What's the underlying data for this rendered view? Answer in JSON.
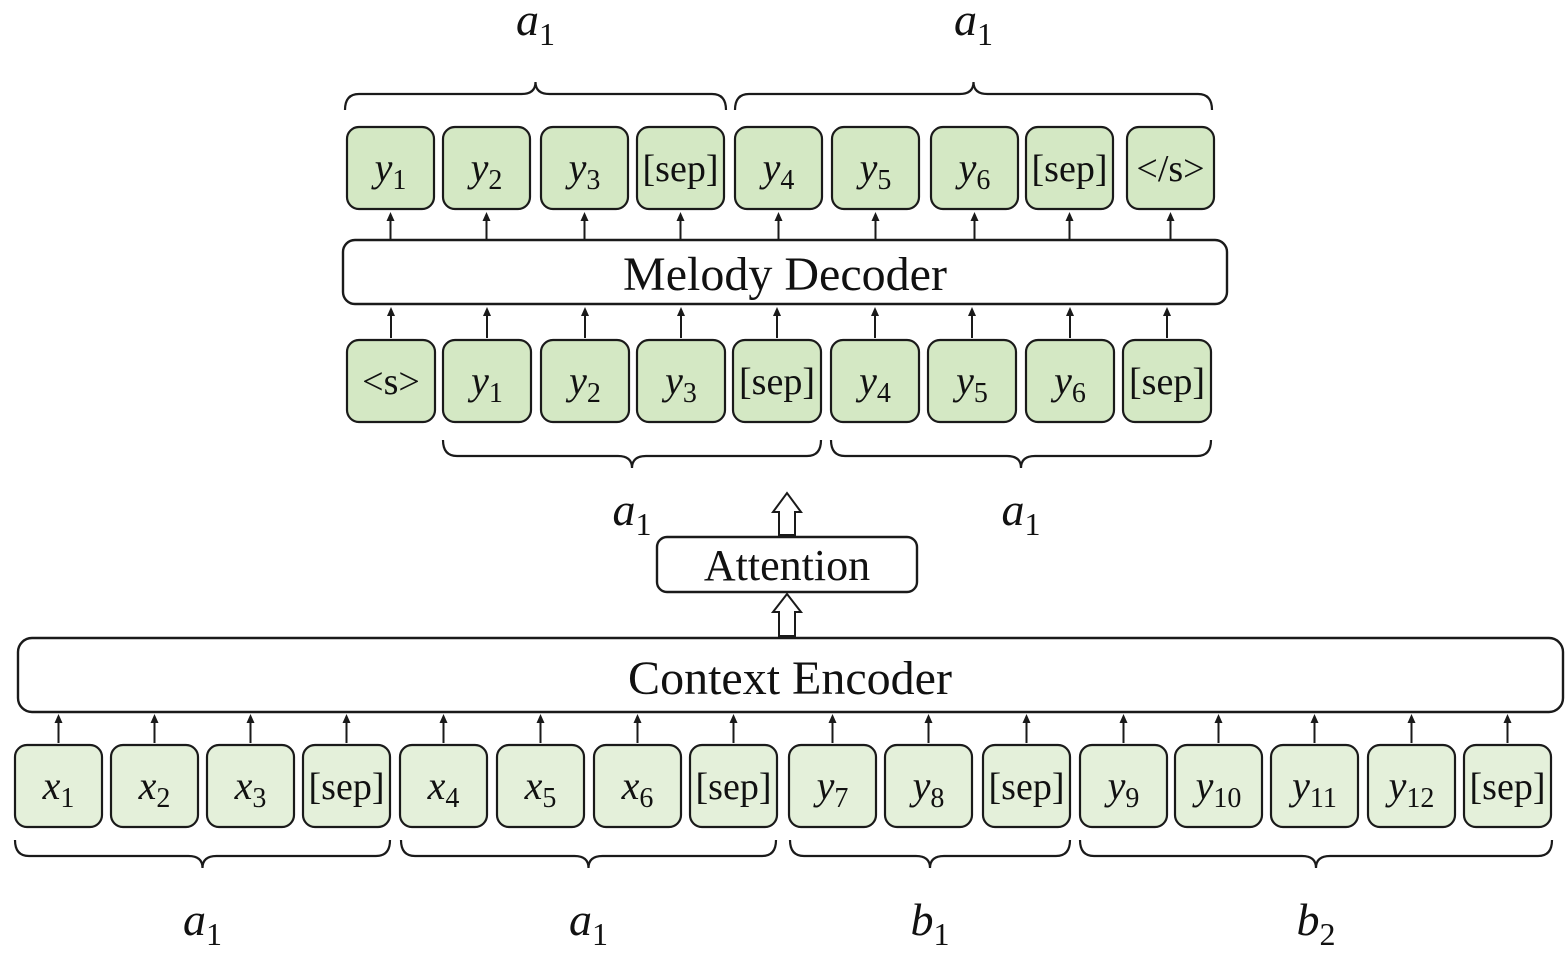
{
  "output_tokens": [
    {
      "base": "y",
      "sub": "1"
    },
    {
      "base": "y",
      "sub": "2"
    },
    {
      "base": "y",
      "sub": "3"
    },
    {
      "base": "[sep]",
      "sub": ""
    },
    {
      "base": "y",
      "sub": "4"
    },
    {
      "base": "y",
      "sub": "5"
    },
    {
      "base": "y",
      "sub": "6"
    },
    {
      "base": "[sep]",
      "sub": ""
    },
    {
      "base": "</s>",
      "sub": ""
    }
  ],
  "input_tokens": [
    {
      "base": "<s>",
      "sub": ""
    },
    {
      "base": "y",
      "sub": "1"
    },
    {
      "base": "y",
      "sub": "2"
    },
    {
      "base": "y",
      "sub": "3"
    },
    {
      "base": "[sep]",
      "sub": ""
    },
    {
      "base": "y",
      "sub": "4"
    },
    {
      "base": "y",
      "sub": "5"
    },
    {
      "base": "y",
      "sub": "6"
    },
    {
      "base": "[sep]",
      "sub": ""
    }
  ],
  "context_tokens": [
    {
      "base": "x",
      "sub": "1"
    },
    {
      "base": "x",
      "sub": "2"
    },
    {
      "base": "x",
      "sub": "3"
    },
    {
      "base": "[sep]",
      "sub": ""
    },
    {
      "base": "x",
      "sub": "4"
    },
    {
      "base": "x",
      "sub": "5"
    },
    {
      "base": "x",
      "sub": "6"
    },
    {
      "base": "[sep]",
      "sub": ""
    },
    {
      "base": "y",
      "sub": "7"
    },
    {
      "base": "y",
      "sub": "8"
    },
    {
      "base": "[sep]",
      "sub": ""
    },
    {
      "base": "y",
      "sub": "9"
    },
    {
      "base": "y",
      "sub": "10"
    },
    {
      "base": "y",
      "sub": "11"
    },
    {
      "base": "y",
      "sub": "12"
    },
    {
      "base": "[sep]",
      "sub": ""
    }
  ],
  "decoder_label": "Melody Decoder",
  "encoder_label": "Context Encoder",
  "attention_label": "Attention",
  "top_braces": [
    {
      "base": "a",
      "sub": "1"
    },
    {
      "base": "a",
      "sub": "1"
    }
  ],
  "mid_braces": [
    {
      "base": "a",
      "sub": "1"
    },
    {
      "base": "a",
      "sub": "1"
    }
  ],
  "bottom_braces": [
    {
      "base": "a",
      "sub": "1"
    },
    {
      "base": "a",
      "sub": "1"
    },
    {
      "base": "b",
      "sub": "1"
    },
    {
      "base": "b",
      "sub": "2"
    }
  ]
}
